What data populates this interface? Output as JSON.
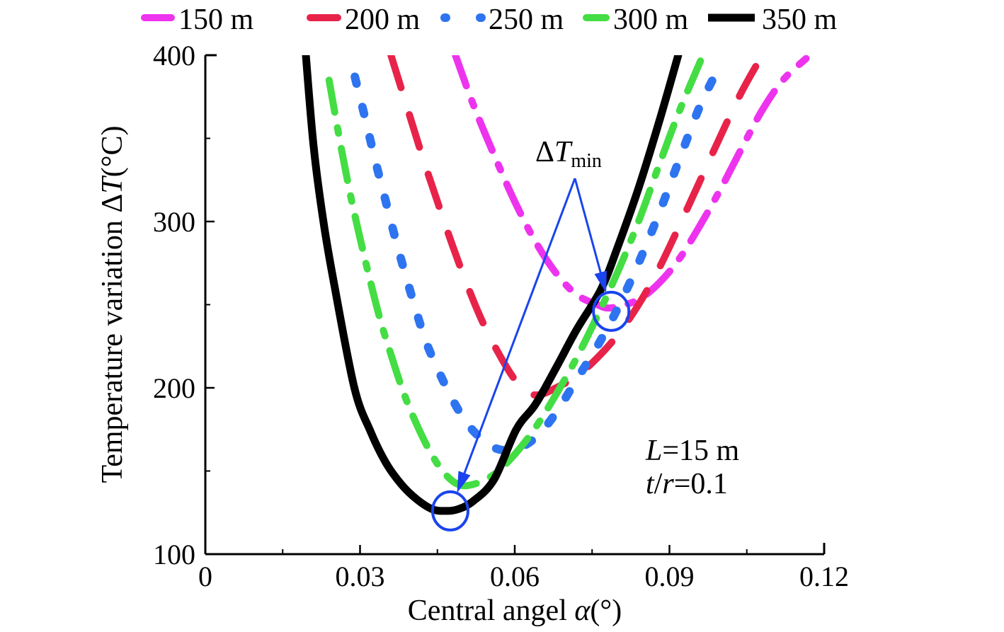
{
  "chart_data": {
    "type": "line",
    "title": "",
    "xlabel": "Central angel",
    "xlabel_symbol": "α",
    "xlabel_unit": "(°)",
    "ylabel": "Temperature variation",
    "ylabel_symbol_prefix": "Δ",
    "ylabel_symbol": "T",
    "ylabel_unit": "(°C)",
    "xlim": [
      0,
      0.12
    ],
    "ylim": [
      100,
      400
    ],
    "xticks": [
      0,
      0.03,
      0.06,
      0.09,
      0.12
    ],
    "xtick_labels": [
      "0",
      "0.03",
      "0.06",
      "0.09",
      "0.12"
    ],
    "xminor": [
      0.015,
      0.045,
      0.075,
      0.105
    ],
    "yticks": [
      100,
      200,
      300,
      400
    ],
    "ytick_labels": [
      "100",
      "200",
      "300",
      "400"
    ],
    "yminor": [
      150,
      250,
      350
    ],
    "grid": false,
    "legend_position": "top",
    "series": [
      {
        "name": "150 m",
        "color": "#ee33ee",
        "style": "dash-dot",
        "x": [
          0.0485,
          0.052,
          0.056,
          0.06,
          0.064,
          0.068,
          0.072,
          0.076,
          0.078,
          0.08,
          0.084,
          0.088,
          0.092,
          0.096,
          0.1,
          0.104,
          0.108,
          0.112,
          0.1165
        ],
        "y": [
          400,
          370,
          340,
          312,
          288,
          269,
          256,
          250,
          248,
          249,
          253,
          263,
          278,
          298,
          320,
          344,
          367,
          385,
          398
        ]
      },
      {
        "name": "200 m",
        "color": "#e8234a",
        "style": "long-dash",
        "x": [
          0.036,
          0.039,
          0.042,
          0.045,
          0.048,
          0.051,
          0.054,
          0.057,
          0.06,
          0.0625,
          0.065,
          0.068,
          0.072,
          0.076,
          0.08,
          0.084,
          0.088,
          0.092,
          0.096,
          0.1,
          0.104,
          0.108
        ],
        "y": [
          400,
          370,
          340,
          312,
          285,
          260,
          238,
          220,
          205,
          197,
          196,
          200,
          207,
          218,
          232,
          250,
          272,
          298,
          325,
          352,
          378,
          400
        ]
      },
      {
        "name": "250 m",
        "color": "#2e74f0",
        "style": "dot",
        "x": [
          0.029,
          0.031,
          0.033,
          0.035,
          0.037,
          0.039,
          0.041,
          0.043,
          0.046,
          0.049,
          0.052,
          0.056,
          0.06,
          0.064,
          0.068,
          0.072,
          0.076,
          0.08,
          0.084,
          0.088,
          0.092,
          0.096,
          0.1
        ],
        "y": [
          387,
          362,
          336,
          312,
          288,
          266,
          245,
          226,
          205,
          187,
          174,
          164,
          163,
          170,
          185,
          205,
          225,
          248,
          275,
          305,
          338,
          370,
          395
        ]
      },
      {
        "name": "300 m",
        "color": "#44dd44",
        "style": "dash-dot",
        "x": [
          0.024,
          0.026,
          0.028,
          0.03,
          0.032,
          0.034,
          0.036,
          0.038,
          0.04,
          0.043,
          0.046,
          0.049,
          0.052,
          0.056,
          0.06,
          0.064,
          0.068,
          0.072,
          0.076,
          0.08,
          0.084,
          0.088,
          0.092,
          0.0965
        ],
        "y": [
          385,
          350,
          318,
          290,
          264,
          240,
          220,
          201,
          185,
          165,
          150,
          142,
          142,
          148,
          160,
          176,
          196,
          218,
          243,
          270,
          300,
          334,
          367,
          400
        ]
      },
      {
        "name": "350 m",
        "color": "#000000",
        "style": "solid",
        "x": [
          0.0195,
          0.021,
          0.0229,
          0.025,
          0.0289,
          0.032,
          0.035,
          0.038,
          0.041,
          0.044,
          0.0465,
          0.049,
          0.052,
          0.056,
          0.0603,
          0.064,
          0.068,
          0.072,
          0.0767,
          0.08,
          0.084,
          0.088,
          0.0917
        ],
        "y": [
          400,
          345,
          300,
          262,
          200,
          174,
          155,
          142,
          133,
          127,
          126,
          127,
          132,
          145,
          175,
          190,
          212,
          235,
          259,
          285,
          320,
          360,
          400
        ]
      }
    ],
    "annotations": [
      {
        "text_prefix": "Δ",
        "text_italic": "T",
        "text_sub": "min",
        "targets": [
          [
            0.0475,
            126
          ],
          [
            0.0787,
            246
          ]
        ],
        "color": "#1a44ee"
      }
    ],
    "text_box": {
      "line1_italic": "L",
      "line1_rest": "=15 m",
      "line2_italic1": "t",
      "line2_sep": "/",
      "line2_italic2": "r",
      "line2_rest": "=0.1"
    }
  }
}
